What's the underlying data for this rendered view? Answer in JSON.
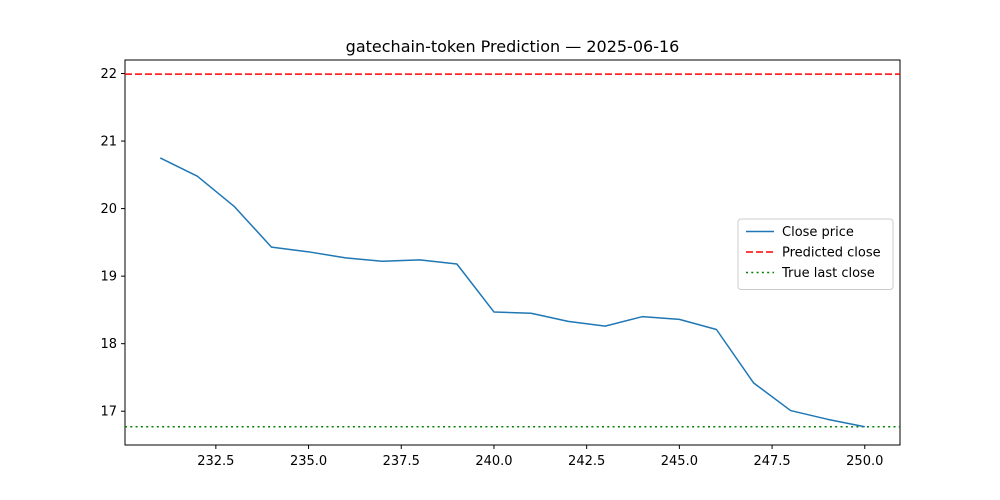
{
  "chart_data": {
    "type": "line",
    "title": "gatechain-token Prediction — 2025-06-16",
    "xlabel": "",
    "ylabel": "",
    "xlim": [
      230.05,
      250.95
    ],
    "ylim": [
      16.5,
      22.2
    ],
    "x_ticks": [
      232.5,
      235.0,
      237.5,
      240.0,
      242.5,
      245.0,
      247.5,
      250.0
    ],
    "x_tick_labels": [
      "232.5",
      "235.0",
      "237.5",
      "240.0",
      "242.5",
      "245.0",
      "247.5",
      "250.0"
    ],
    "y_ticks": [
      17,
      18,
      19,
      20,
      21,
      22
    ],
    "y_tick_labels": [
      "17",
      "18",
      "19",
      "20",
      "21",
      "22"
    ],
    "grid": false,
    "legend_position": "center-right",
    "series": [
      {
        "name": "Close price",
        "color": "#1f77b4",
        "style": "solid",
        "x": [
          231,
          232,
          233,
          234,
          235,
          236,
          237,
          238,
          239,
          240,
          241,
          242,
          243,
          244,
          245,
          246,
          247,
          248,
          249,
          250
        ],
        "values": [
          20.75,
          20.48,
          20.03,
          19.43,
          19.36,
          19.27,
          19.22,
          19.24,
          19.18,
          18.47,
          18.45,
          18.33,
          18.26,
          18.4,
          18.36,
          18.21,
          17.42,
          17.01,
          16.88,
          16.77
        ]
      }
    ],
    "hlines": [
      {
        "name": "Predicted close",
        "y": 21.99,
        "color": "#ff0000",
        "style": "dashed"
      },
      {
        "name": "True last close",
        "y": 16.77,
        "color": "#008000",
        "style": "dotted"
      }
    ]
  }
}
